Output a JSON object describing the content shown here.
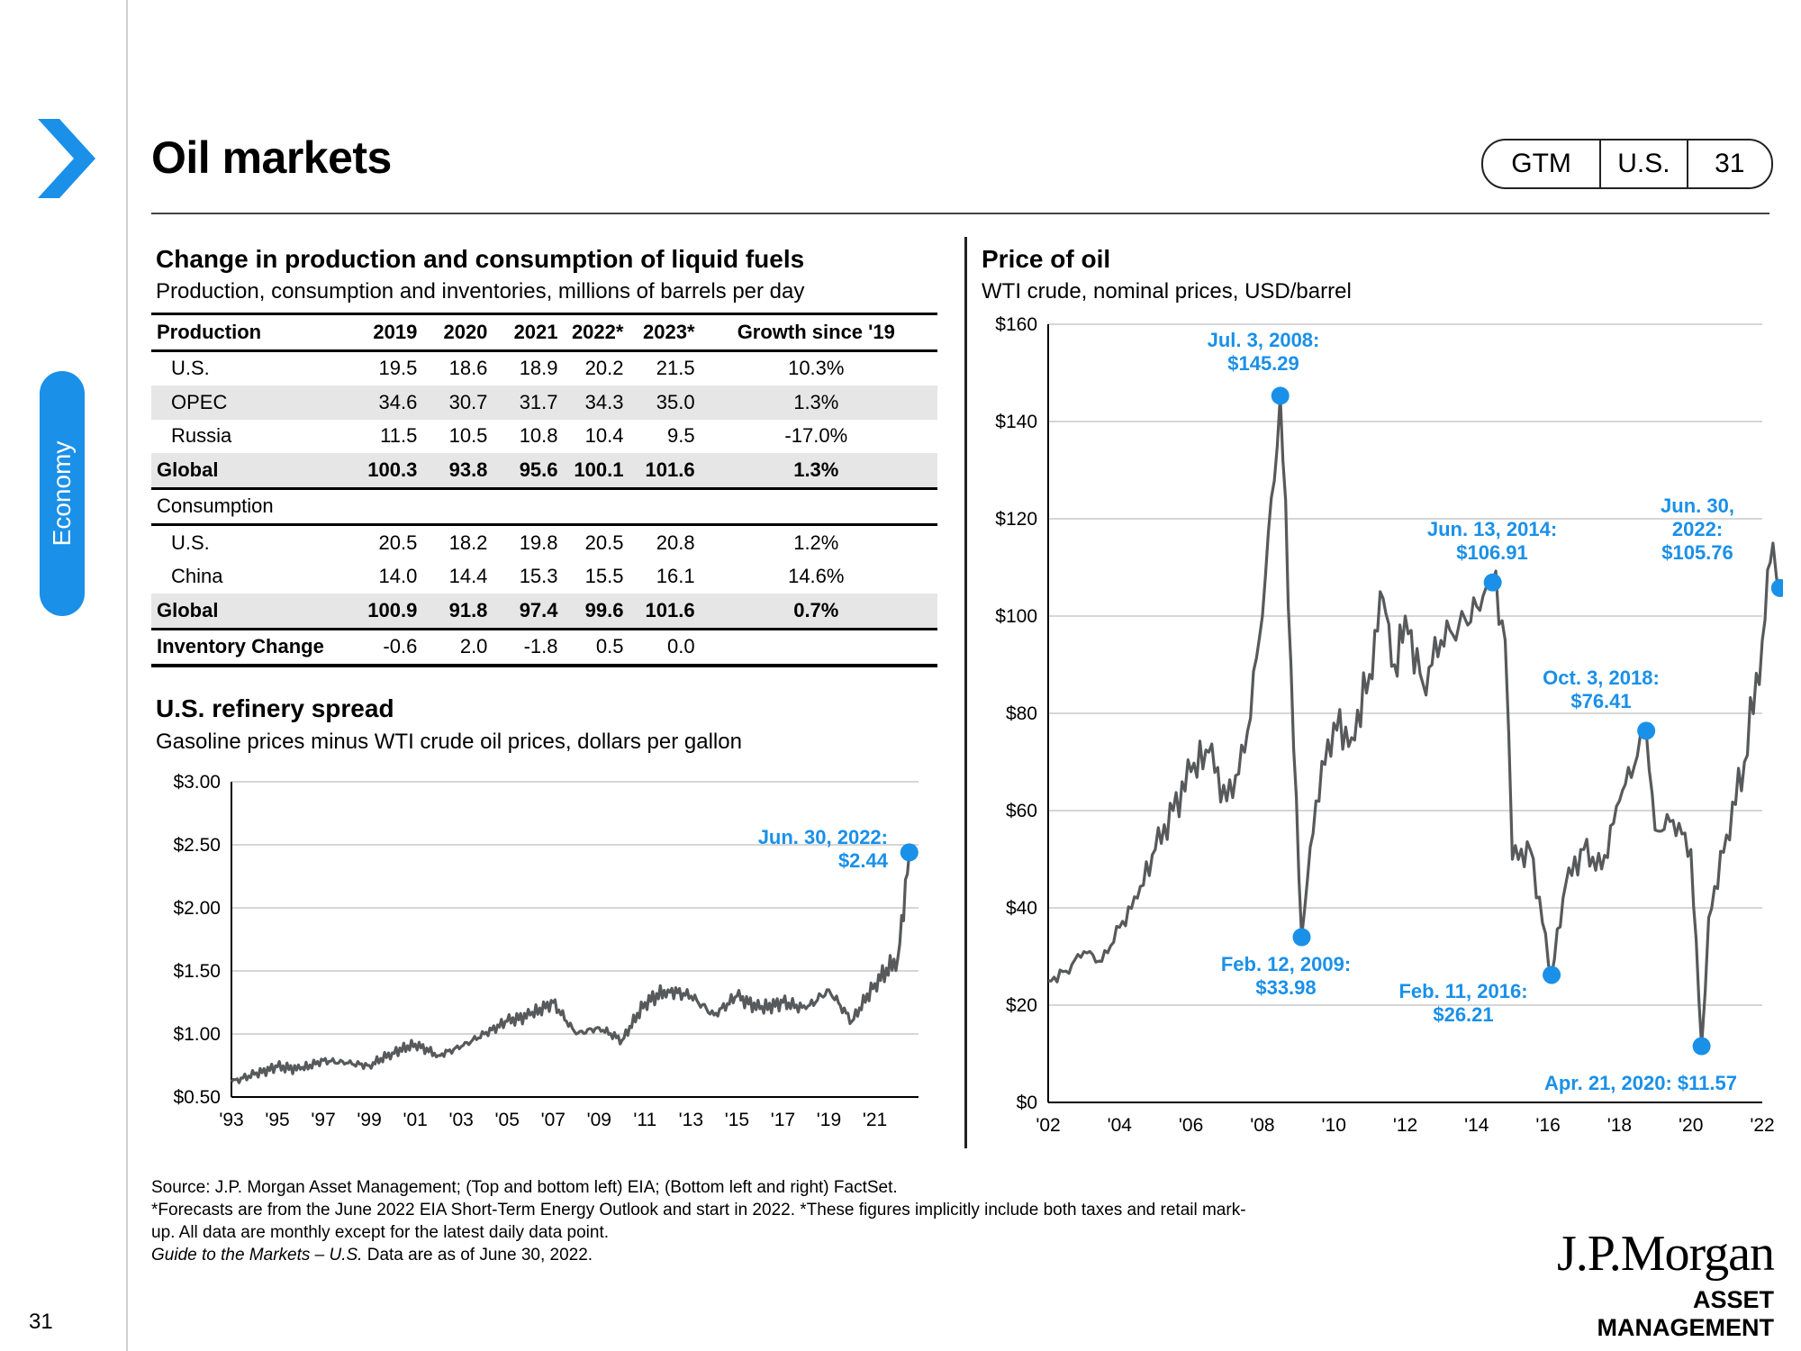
{
  "sidebar": {
    "section_label": "Economy",
    "page_number": "31",
    "accent_color": "#1a90e8"
  },
  "header": {
    "title": "Oil markets",
    "nav": [
      "GTM",
      "U.S.",
      "31"
    ]
  },
  "table": {
    "title": "Change in production and consumption of liquid fuels",
    "subtitle": "Production, consumption and inventories, millions of barrels per day",
    "columns": [
      "2019",
      "2020",
      "2021",
      "2022*",
      "2023*",
      "Growth since '19"
    ],
    "production_label": "Production",
    "production": [
      {
        "label": "U.S.",
        "values": [
          "19.5",
          "18.6",
          "18.9",
          "20.2",
          "21.5",
          "10.3%"
        ]
      },
      {
        "label": "OPEC",
        "values": [
          "34.6",
          "30.7",
          "31.7",
          "34.3",
          "35.0",
          "1.3%"
        ]
      },
      {
        "label": "Russia",
        "values": [
          "11.5",
          "10.5",
          "10.8",
          "10.4",
          "9.5",
          "-17.0%"
        ]
      },
      {
        "label": "Global",
        "values": [
          "100.3",
          "93.8",
          "95.6",
          "100.1",
          "101.6",
          "1.3%"
        ]
      }
    ],
    "consumption_label": "Consumption",
    "consumption": [
      {
        "label": "U.S.",
        "values": [
          "20.5",
          "18.2",
          "19.8",
          "20.5",
          "20.8",
          "1.2%"
        ]
      },
      {
        "label": "China",
        "values": [
          "14.0",
          "14.4",
          "15.3",
          "15.5",
          "16.1",
          "14.6%"
        ]
      },
      {
        "label": "Global",
        "values": [
          "100.9",
          "91.8",
          "97.4",
          "99.6",
          "101.6",
          "0.7%"
        ]
      }
    ],
    "inventory": {
      "label": "Inventory Change",
      "values": [
        "-0.6",
        "2.0",
        "-1.8",
        "0.5",
        "0.0",
        ""
      ]
    }
  },
  "chart_data": [
    {
      "type": "line",
      "title": "U.S. refinery spread",
      "subtitle": "Gasoline prices minus WTI crude oil prices, dollars per gallon",
      "ylim": [
        0.5,
        3.0
      ],
      "yticks": [
        "$3.00",
        "$2.50",
        "$2.00",
        "$1.50",
        "$1.00",
        "$0.50"
      ],
      "xticks": [
        "'93",
        "'95",
        "'97",
        "'99",
        "'01",
        "'03",
        "'05",
        "'07",
        "'09",
        "'11",
        "'13",
        "'15",
        "'17",
        "'19",
        "'21"
      ],
      "x": [
        1993,
        1994,
        1995,
        1996,
        1997,
        1998,
        1999,
        2000,
        2001,
        2002,
        2003,
        2004,
        2005,
        2006,
        2007,
        2008,
        2009,
        2010,
        2011,
        2012,
        2013,
        2014,
        2015,
        2016,
        2017,
        2018,
        2019,
        2020,
        2021,
        2022,
        2022.5
      ],
      "series": [
        {
          "values": [
            0.62,
            0.68,
            0.74,
            0.72,
            0.79,
            0.77,
            0.75,
            0.85,
            0.92,
            0.83,
            0.9,
            1.0,
            1.1,
            1.15,
            1.25,
            1.0,
            1.05,
            0.95,
            1.25,
            1.35,
            1.3,
            1.15,
            1.3,
            1.2,
            1.25,
            1.2,
            1.35,
            1.1,
            1.4,
            1.6,
            2.44
          ]
        }
      ],
      "color": "#58595b",
      "annotations": [
        {
          "label": "Jun. 30, 2022:",
          "value": "$2.44",
          "x": 2022.5,
          "y": 2.44
        }
      ],
      "annotation_color": "#1a90e8"
    },
    {
      "type": "line",
      "title": "Price of oil",
      "subtitle": "WTI crude, nominal prices, USD/barrel",
      "ylim": [
        0,
        160
      ],
      "yticks": [
        "$160",
        "$140",
        "$120",
        "$100",
        "$80",
        "$60",
        "$40",
        "$20",
        "$0"
      ],
      "xticks": [
        "'02",
        "'04",
        "'06",
        "'08",
        "'10",
        "'12",
        "'14",
        "'16",
        "'18",
        "'20",
        "'22"
      ],
      "x": [
        2002,
        2002.5,
        2003,
        2003.5,
        2004,
        2004.5,
        2005,
        2005.5,
        2006,
        2006.5,
        2007,
        2007.5,
        2008,
        2008.5,
        2008.8,
        2009.1,
        2009.5,
        2010,
        2010.5,
        2011,
        2011.3,
        2011.7,
        2012,
        2012.5,
        2013,
        2013.5,
        2014,
        2014.45,
        2014.8,
        2015,
        2015.5,
        2016.1,
        2016.5,
        2017,
        2017.5,
        2018,
        2018.75,
        2019,
        2019.5,
        2020,
        2020.3,
        2020.5,
        2021,
        2021.5,
        2022,
        2022.3,
        2022.5
      ],
      "series": [
        {
          "values": [
            25,
            27,
            31,
            29,
            36,
            42,
            52,
            60,
            68,
            72,
            62,
            72,
            100,
            145.29,
            90,
            33.98,
            62,
            78,
            75,
            88,
            105,
            90,
            100,
            86,
            95,
            98,
            102,
            106.91,
            95,
            50,
            52,
            26.21,
            45,
            52,
            48,
            62,
            76.41,
            56,
            58,
            52,
            11.57,
            38,
            55,
            70,
            95,
            115,
            105.76
          ]
        }
      ],
      "color": "#58595b",
      "annotations": [
        {
          "label": "Jul. 3, 2008:",
          "value": "$145.29",
          "x": 2008.5,
          "y": 145.29
        },
        {
          "label": "Feb. 12, 2009:",
          "value": "$33.98",
          "x": 2009.1,
          "y": 33.98
        },
        {
          "label": "Jun. 13, 2014:",
          "value": "$106.91",
          "x": 2014.45,
          "y": 106.91
        },
        {
          "label": "Feb. 11, 2016:",
          "value": "$26.21",
          "x": 2016.1,
          "y": 26.21
        },
        {
          "label": "Oct. 3, 2018:",
          "value": "$76.41",
          "x": 2018.75,
          "y": 76.41
        },
        {
          "label": "Apr. 21, 2020: $11.57",
          "value": "",
          "x": 2020.3,
          "y": 11.57
        },
        {
          "label": "Jun. 30,",
          "value": "2022:",
          "value2": "$105.76",
          "x": 2022.5,
          "y": 105.76
        }
      ],
      "annotation_color": "#1a90e8"
    }
  ],
  "footer": {
    "source": "Source: J.P. Morgan Asset Management; (Top and bottom left) EIA; (Bottom left and right) FactSet.",
    "note1": "*Forecasts are from the June 2022 EIA Short-Term Energy Outlook and start in 2022. *These figures implicitly include both taxes and retail mark-",
    "note2": "up. All data are monthly except for the latest daily data point.",
    "guide_italic": "Guide to the Markets – U.S.",
    "guide_rest": " Data are as of June 30, 2022."
  },
  "brand": {
    "logo": "J.P.Morgan",
    "tagline": "ASSET MANAGEMENT"
  }
}
